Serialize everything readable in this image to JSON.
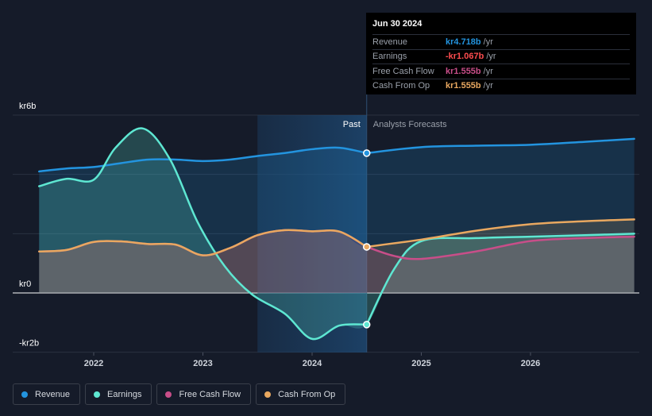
{
  "colors": {
    "background": "#151b29",
    "revenue": "#2394df",
    "earnings": "#5ee7d2",
    "free_cash_flow": "#c84e89",
    "cash_from_op": "#e9a860",
    "forecast_shade": "#1b3a5c"
  },
  "tooltip": {
    "date": "Jun 30 2024",
    "rows": [
      {
        "label": "Revenue",
        "value": "kr4.718b",
        "unit": "/yr",
        "color": "#2394df"
      },
      {
        "label": "Earnings",
        "value": "-kr1.067b",
        "unit": "/yr",
        "color": "#ff4d4f"
      },
      {
        "label": "Free Cash Flow",
        "value": "kr1.555b",
        "unit": "/yr",
        "color": "#c84e89"
      },
      {
        "label": "Cash From Op",
        "value": "kr1.555b",
        "unit": "/yr",
        "color": "#e9a860"
      }
    ]
  },
  "legend": [
    {
      "label": "Revenue",
      "icon": "revenue-dot",
      "color": "#2394df"
    },
    {
      "label": "Earnings",
      "icon": "earnings-dot",
      "color": "#5ee7d2"
    },
    {
      "label": "Free Cash Flow",
      "icon": "free-cash-flow-dot",
      "color": "#c84e89"
    },
    {
      "label": "Cash From Op",
      "icon": "cash-from-op-dot",
      "color": "#e9a860"
    }
  ],
  "chart_data": {
    "type": "line",
    "title": "",
    "ylim": [
      -2,
      6
    ],
    "xlim": [
      2021.5,
      2026.95
    ],
    "y_ticks": [
      {
        "value": 6,
        "label": "kr6b"
      },
      {
        "value": 0,
        "label": "kr0"
      },
      {
        "value": -2,
        "label": "-kr2b"
      }
    ],
    "x_ticks": [
      {
        "value": 2022,
        "label": "2022"
      },
      {
        "value": 2023,
        "label": "2023"
      },
      {
        "value": 2024,
        "label": "2024"
      },
      {
        "value": 2025,
        "label": "2025"
      },
      {
        "value": 2026,
        "label": "2026"
      }
    ],
    "past_label": "Past",
    "forecast_label": "Analysts Forecasts",
    "past_shade_start": 2023.5,
    "divider_x": 2024.5,
    "series": [
      {
        "name": "Revenue",
        "key": "revenue",
        "color": "#2394df",
        "fill": true,
        "past": [
          [
            2021.5,
            4.1
          ],
          [
            2021.75,
            4.2
          ],
          [
            2022.0,
            4.25
          ],
          [
            2022.25,
            4.38
          ],
          [
            2022.5,
            4.5
          ],
          [
            2022.75,
            4.5
          ],
          [
            2023.0,
            4.45
          ],
          [
            2023.25,
            4.5
          ],
          [
            2023.5,
            4.62
          ],
          [
            2023.75,
            4.72
          ],
          [
            2024.0,
            4.85
          ],
          [
            2024.25,
            4.9
          ],
          [
            2024.5,
            4.718
          ]
        ],
        "forecast": [
          [
            2024.5,
            4.718
          ],
          [
            2025.0,
            4.92
          ],
          [
            2025.5,
            4.97
          ],
          [
            2026.0,
            5.0
          ],
          [
            2026.5,
            5.1
          ],
          [
            2026.95,
            5.2
          ]
        ]
      },
      {
        "name": "Earnings",
        "key": "earnings",
        "color": "#5ee7d2",
        "fill": true,
        "past": [
          [
            2021.5,
            3.6
          ],
          [
            2021.75,
            3.85
          ],
          [
            2022.0,
            3.82
          ],
          [
            2022.2,
            4.9
          ],
          [
            2022.45,
            5.55
          ],
          [
            2022.7,
            4.5
          ],
          [
            2022.95,
            2.4
          ],
          [
            2023.2,
            0.9
          ],
          [
            2023.45,
            -0.05
          ],
          [
            2023.75,
            -0.7
          ],
          [
            2024.0,
            -1.55
          ],
          [
            2024.25,
            -1.1
          ],
          [
            2024.5,
            -1.067
          ]
        ],
        "forecast": [
          [
            2024.5,
            -1.067
          ],
          [
            2024.75,
            0.8
          ],
          [
            2025.0,
            1.75
          ],
          [
            2025.5,
            1.85
          ],
          [
            2026.0,
            1.9
          ],
          [
            2026.5,
            1.95
          ],
          [
            2026.95,
            2.0
          ]
        ]
      },
      {
        "name": "Free Cash Flow",
        "key": "free_cash_flow",
        "color": "#c84e89",
        "fill": true,
        "past": [
          [
            2021.5,
            1.4
          ],
          [
            2021.75,
            1.45
          ],
          [
            2022.0,
            1.72
          ],
          [
            2022.25,
            1.74
          ],
          [
            2022.5,
            1.65
          ],
          [
            2022.75,
            1.63
          ],
          [
            2023.0,
            1.27
          ],
          [
            2023.25,
            1.52
          ],
          [
            2023.5,
            1.95
          ],
          [
            2023.75,
            2.12
          ],
          [
            2024.0,
            2.08
          ],
          [
            2024.25,
            2.07
          ],
          [
            2024.5,
            1.555
          ]
        ],
        "forecast": [
          [
            2024.5,
            1.555
          ],
          [
            2024.75,
            1.25
          ],
          [
            2025.0,
            1.15
          ],
          [
            2025.5,
            1.4
          ],
          [
            2026.0,
            1.75
          ],
          [
            2026.5,
            1.85
          ],
          [
            2026.95,
            1.9
          ]
        ]
      },
      {
        "name": "Cash From Op",
        "key": "cash_from_op",
        "color": "#e9a860",
        "fill": true,
        "past": [
          [
            2021.5,
            1.4
          ],
          [
            2021.75,
            1.45
          ],
          [
            2022.0,
            1.72
          ],
          [
            2022.25,
            1.74
          ],
          [
            2022.5,
            1.65
          ],
          [
            2022.75,
            1.63
          ],
          [
            2023.0,
            1.27
          ],
          [
            2023.25,
            1.52
          ],
          [
            2023.5,
            1.95
          ],
          [
            2023.75,
            2.12
          ],
          [
            2024.0,
            2.08
          ],
          [
            2024.25,
            2.07
          ],
          [
            2024.5,
            1.555
          ]
        ],
        "forecast": [
          [
            2024.5,
            1.555
          ],
          [
            2025.0,
            1.8
          ],
          [
            2025.5,
            2.1
          ],
          [
            2026.0,
            2.32
          ],
          [
            2026.5,
            2.42
          ],
          [
            2026.95,
            2.48
          ]
        ]
      }
    ]
  }
}
